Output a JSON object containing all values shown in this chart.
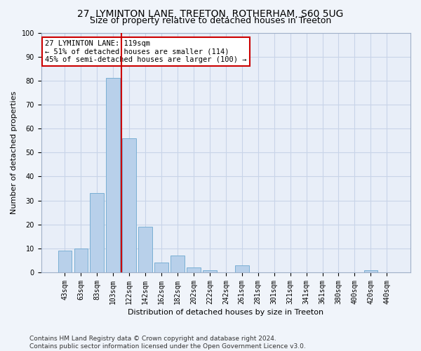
{
  "title1": "27, LYMINTON LANE, TREETON, ROTHERHAM, S60 5UG",
  "title2": "Size of property relative to detached houses in Treeton",
  "xlabel": "Distribution of detached houses by size in Treeton",
  "ylabel": "Number of detached properties",
  "categories": [
    "43sqm",
    "63sqm",
    "83sqm",
    "103sqm",
    "122sqm",
    "142sqm",
    "162sqm",
    "182sqm",
    "202sqm",
    "222sqm",
    "242sqm",
    "261sqm",
    "281sqm",
    "301sqm",
    "321sqm",
    "341sqm",
    "361sqm",
    "380sqm",
    "400sqm",
    "420sqm",
    "440sqm"
  ],
  "values": [
    9,
    10,
    33,
    81,
    56,
    19,
    4,
    7,
    2,
    1,
    0,
    3,
    0,
    0,
    0,
    0,
    0,
    0,
    0,
    1,
    0
  ],
  "bar_color": "#b8d0ea",
  "bar_edge_color": "#7aafd4",
  "vline_color": "#cc0000",
  "annotation_text": "27 LYMINTON LANE: 119sqm\n← 51% of detached houses are smaller (114)\n45% of semi-detached houses are larger (100) →",
  "annotation_box_color": "#ffffff",
  "annotation_box_edge": "#cc0000",
  "ylim": [
    0,
    100
  ],
  "yticks": [
    0,
    10,
    20,
    30,
    40,
    50,
    60,
    70,
    80,
    90,
    100
  ],
  "grid_color": "#c8d4e8",
  "bg_color": "#e8eef8",
  "fig_color": "#f0f4fa",
  "footer": "Contains HM Land Registry data © Crown copyright and database right 2024.\nContains public sector information licensed under the Open Government Licence v3.0.",
  "title1_fontsize": 10,
  "title2_fontsize": 9,
  "axis_label_fontsize": 8,
  "tick_fontsize": 7,
  "annotation_fontsize": 7.5,
  "footer_fontsize": 6.5
}
